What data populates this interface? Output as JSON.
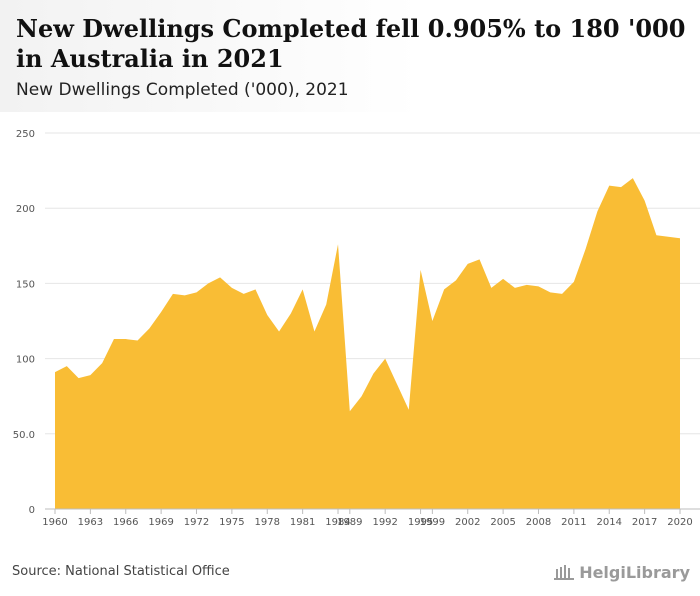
{
  "header": {
    "title": "New Dwellings Completed fell 0.905% to 180 '000 in Australia in 2021",
    "subtitle": "New Dwellings Completed ('000), 2021"
  },
  "footer": {
    "source": "Source: National Statistical Office",
    "logo_text": "HelgiLibrary"
  },
  "colors": {
    "area_fill": "#f9bd35",
    "grid": "#e6e6e6",
    "axis": "#bdbdbd"
  },
  "chart_data": {
    "type": "area",
    "title": "New Dwellings Completed fell 0.905% to 180 '000 in Australia in 2021",
    "subtitle": "New Dwellings Completed ('000), 2021",
    "xlabel": "",
    "ylabel": "",
    "ylim": [
      0,
      250
    ],
    "y_ticks": [
      "0",
      "50.0",
      "100",
      "150",
      "200",
      "250"
    ],
    "x_ticks": [
      "1960",
      "1963",
      "1966",
      "1969",
      "1972",
      "1975",
      "1978",
      "1981",
      "1984",
      "1989",
      "1992",
      "1995",
      "1999",
      "2002",
      "2005",
      "2008",
      "2011",
      "2014",
      "2017",
      "2020"
    ],
    "grid": true,
    "legend": "none",
    "series": [
      {
        "values": [
          [
            1960,
            91
          ],
          [
            1961,
            95
          ],
          [
            1962,
            87
          ],
          [
            1963,
            89
          ],
          [
            1964,
            97
          ],
          [
            1965,
            113
          ],
          [
            1966,
            113
          ],
          [
            1967,
            112
          ],
          [
            1968,
            120
          ],
          [
            1969,
            131
          ],
          [
            1970,
            143
          ],
          [
            1971,
            142
          ],
          [
            1972,
            144
          ],
          [
            1973,
            150
          ],
          [
            1974,
            154
          ],
          [
            1975,
            147
          ],
          [
            1976,
            143
          ],
          [
            1977,
            146
          ],
          [
            1978,
            129
          ],
          [
            1979,
            118
          ],
          [
            1980,
            130
          ],
          [
            1981,
            146
          ],
          [
            1982,
            118
          ],
          [
            1983,
            136
          ],
          [
            1984,
            176
          ],
          [
            1989,
            65
          ],
          [
            1990,
            75
          ],
          [
            1991,
            90
          ],
          [
            1992,
            100
          ],
          [
            1993,
            83
          ],
          [
            1994,
            66
          ],
          [
            1995,
            159
          ],
          [
            1999,
            125
          ],
          [
            2000,
            146
          ],
          [
            2001,
            152
          ],
          [
            2002,
            163
          ],
          [
            2003,
            166
          ],
          [
            2004,
            147
          ],
          [
            2005,
            153
          ],
          [
            2006,
            147
          ],
          [
            2007,
            149
          ],
          [
            2008,
            148
          ],
          [
            2009,
            144
          ],
          [
            2010,
            143
          ],
          [
            2011,
            151
          ],
          [
            2012,
            173
          ],
          [
            2013,
            198
          ],
          [
            2014,
            215
          ],
          [
            2015,
            214
          ],
          [
            2016,
            220
          ],
          [
            2017,
            205
          ],
          [
            2018,
            182
          ],
          [
            2019,
            181
          ],
          [
            2020,
            180
          ]
        ]
      }
    ]
  }
}
